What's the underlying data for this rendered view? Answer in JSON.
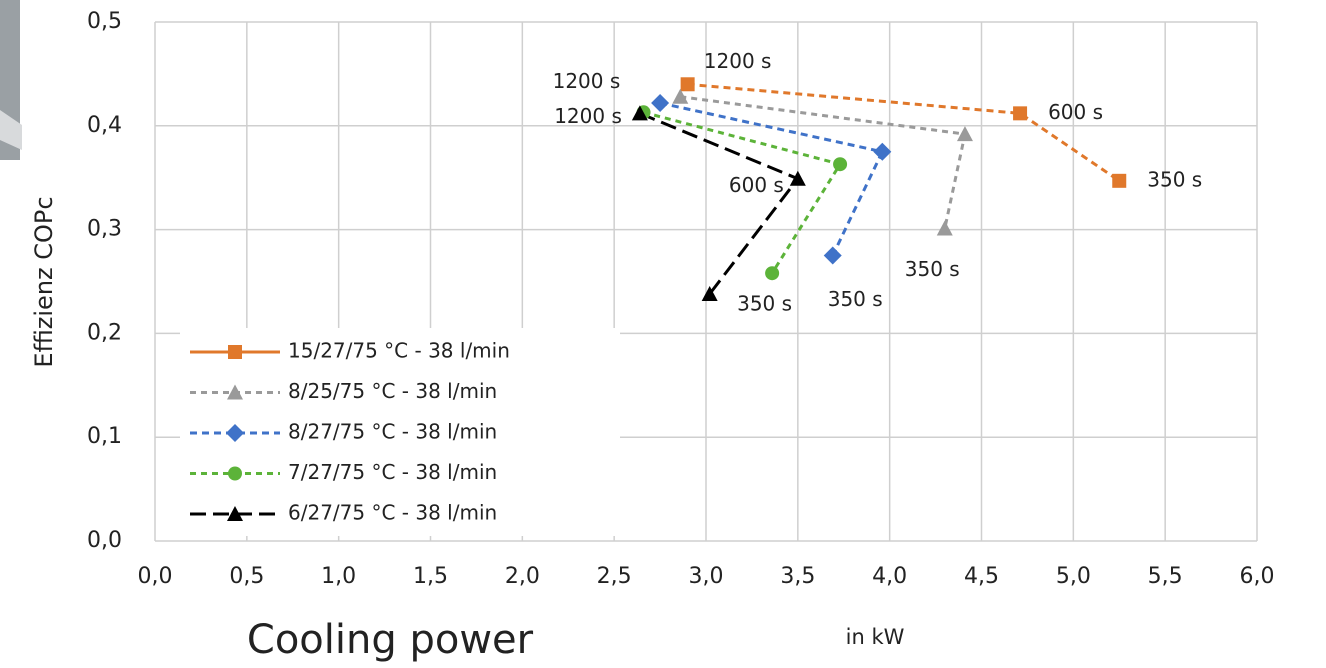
{
  "chart_data": {
    "type": "scatter",
    "y_label": "Effizienz COPc",
    "x_label": "Cooling power",
    "x_unit": "in kW",
    "xlim": [
      0,
      6
    ],
    "ylim": [
      0,
      0.5
    ],
    "xticks": [
      {
        "value": 0,
        "label": "0,0"
      },
      {
        "value": 0.5,
        "label": "0,5"
      },
      {
        "value": 1,
        "label": "1,0"
      },
      {
        "value": 1.5,
        "label": "1,5"
      },
      {
        "value": 2,
        "label": "2,0"
      },
      {
        "value": 2.5,
        "label": "2,5"
      },
      {
        "value": 3,
        "label": "3,0"
      },
      {
        "value": 3.5,
        "label": "3,5"
      },
      {
        "value": 4,
        "label": "4,0"
      },
      {
        "value": 4.5,
        "label": "4,5"
      },
      {
        "value": 5,
        "label": "5,0"
      },
      {
        "value": 5.5,
        "label": "5,5"
      },
      {
        "value": 6,
        "label": "6,0"
      }
    ],
    "yticks": [
      {
        "value": 0,
        "label": "0,0"
      },
      {
        "value": 0.1,
        "label": "0,1"
      },
      {
        "value": 0.2,
        "label": "0,2"
      },
      {
        "value": 0.3,
        "label": "0,3"
      },
      {
        "value": 0.4,
        "label": "0,4"
      },
      {
        "value": 0.5,
        "label": "0,5"
      }
    ],
    "grid": true,
    "legend": "lower left",
    "series": [
      {
        "name": "15/27/75 °C - 38 l/min",
        "color": "#e0782b",
        "marker": "square",
        "dash": "7 5",
        "x": [
          2.9,
          4.71,
          5.25
        ],
        "values": [
          0.44,
          0.412,
          0.347
        ],
        "point_labels": [
          "1200 s",
          "600 s",
          "350 s"
        ]
      },
      {
        "name": "8/25/75 °C - 38 l/min",
        "color": "#9a9a9a",
        "marker": "triangle",
        "dash": "6 5",
        "x": [
          2.86,
          4.41,
          4.3
        ],
        "values": [
          0.428,
          0.392,
          0.301
        ],
        "point_labels": [
          "1200 s",
          null,
          "350 s"
        ]
      },
      {
        "name": "8/27/75 °C - 38 l/min",
        "color": "#3f72c8",
        "marker": "diamond",
        "dash": "7 5",
        "x": [
          2.75,
          3.96,
          3.69
        ],
        "values": [
          0.422,
          0.375,
          0.275
        ],
        "point_labels": [
          null,
          null,
          "350 s"
        ]
      },
      {
        "name": "7/27/75 °C - 38 l/min",
        "color": "#5cb339",
        "marker": "circle",
        "dash": "6 5",
        "x": [
          2.66,
          3.73,
          3.36
        ],
        "values": [
          0.413,
          0.363,
          0.258
        ],
        "point_labels": [
          null,
          null,
          "350 s"
        ]
      },
      {
        "name": "6/27/75 °C - 38 l/min",
        "color": "#000000",
        "marker": "triangle",
        "dash": "16 7",
        "x": [
          2.64,
          3.5,
          3.02
        ],
        "values": [
          0.412,
          0.349,
          0.238
        ],
        "point_labels": [
          "1200 s",
          "600 s",
          null
        ]
      }
    ]
  }
}
